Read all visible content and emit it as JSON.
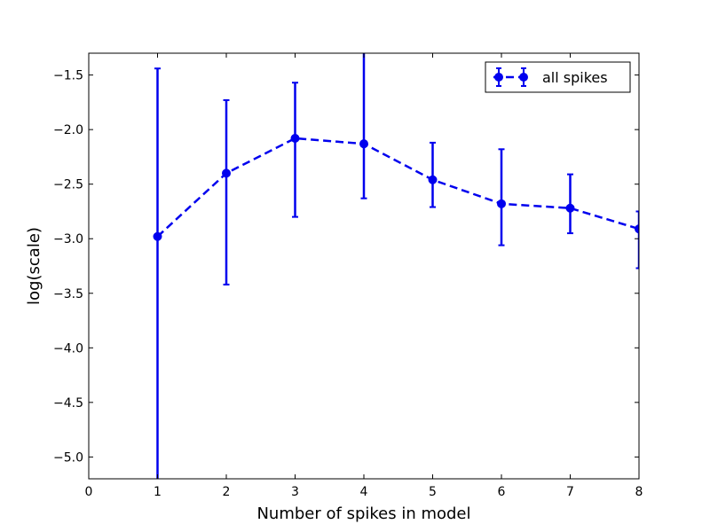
{
  "chart_data": {
    "type": "line",
    "title": "",
    "xlabel": "Number of spikes in model",
    "ylabel": "log(scale)",
    "xlim": [
      0,
      8
    ],
    "ylim": [
      -5.2,
      -1.3
    ],
    "grid": false,
    "legend_position": "top-right",
    "x_ticks": [
      "0",
      "1",
      "2",
      "3",
      "4",
      "5",
      "6",
      "7",
      "8"
    ],
    "y_ticks": [
      "−1.5",
      "−2.0",
      "−2.5",
      "−3.0",
      "−3.5",
      "−4.0",
      "−4.5",
      "−5.0"
    ],
    "series": [
      {
        "name": "all spikes",
        "color": "#0000ee",
        "line_style": "dashed",
        "marker": "circle",
        "x": [
          1,
          2,
          3,
          4,
          5,
          6,
          7,
          8
        ],
        "y": [
          -2.98,
          -2.4,
          -2.08,
          -2.13,
          -2.46,
          -2.68,
          -2.72,
          -2.91
        ],
        "y_err_upper": [
          -1.44,
          -1.73,
          -1.57,
          -1.23,
          -2.12,
          -2.18,
          -2.41,
          -2.75
        ],
        "y_err_lower": [
          -5.25,
          -3.42,
          -2.8,
          -2.63,
          -2.71,
          -3.06,
          -2.95,
          -3.27
        ]
      }
    ]
  }
}
